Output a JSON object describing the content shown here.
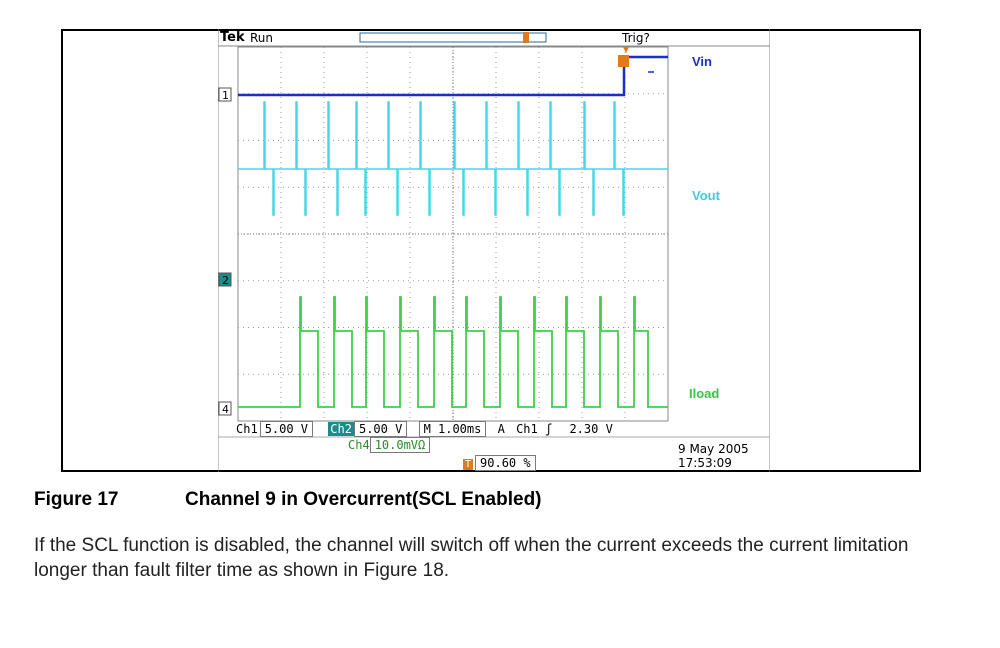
{
  "scope": {
    "brand": "Tek",
    "run_state": "Run",
    "trigger_state": "Trig?",
    "channel_labels": {
      "vin": "Vin",
      "vout": "Vout",
      "iload": "Iload"
    },
    "markers": {
      "ch1": "1",
      "ch2": "2",
      "ch4": "4"
    },
    "readout": {
      "ch1_name": "Ch1",
      "ch1_scale": "5.00 V",
      "ch2_name": "Ch2",
      "ch2_scale": "5.00 V",
      "timebase": "M 1.00ms",
      "trigger_mode": "A",
      "trigger_source": "Ch1",
      "trigger_slope": "ʃ",
      "trigger_level": "2.30 V",
      "ch4_name": "Ch4",
      "ch4_scale": "10.0mVΩ",
      "trigger_position": "90.60 %"
    },
    "date": "9 May 2005",
    "time": "17:53:09",
    "colors": {
      "vin": "#1a2fc8",
      "vout": "#45d8e8",
      "iload": "#3ed04a",
      "trigger": "#e07a1a",
      "grid": "#9a9a9a"
    }
  },
  "figure": {
    "number": "Figure 17",
    "title": "Channel 9 in Overcurrent(SCL Enabled)"
  },
  "paragraph": "If the SCL function is disabled, the channel will switch off when the current exceeds the current limitation longer than fault filter time as shown in Figure 18."
}
